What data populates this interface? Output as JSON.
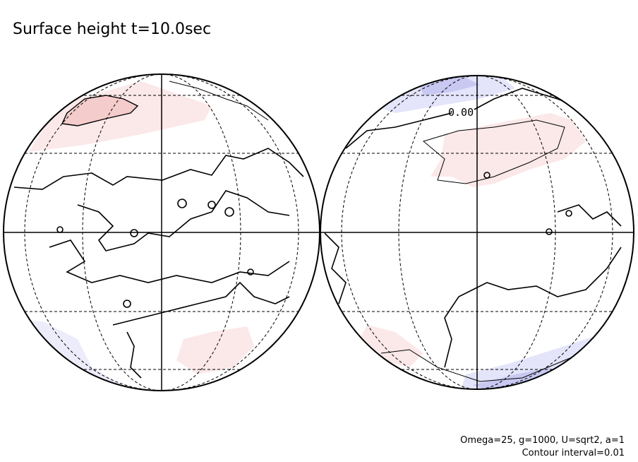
{
  "header": {
    "title": "Surface height t=10.0sec"
  },
  "globes": [
    {
      "contour_labels": []
    },
    {
      "contour_labels": [
        "0.00"
      ]
    }
  ],
  "footer": {
    "lines": [
      "Omega=25, g=1000, U=sqrt2, a=1",
      "Contour interval=0.01"
    ]
  }
}
